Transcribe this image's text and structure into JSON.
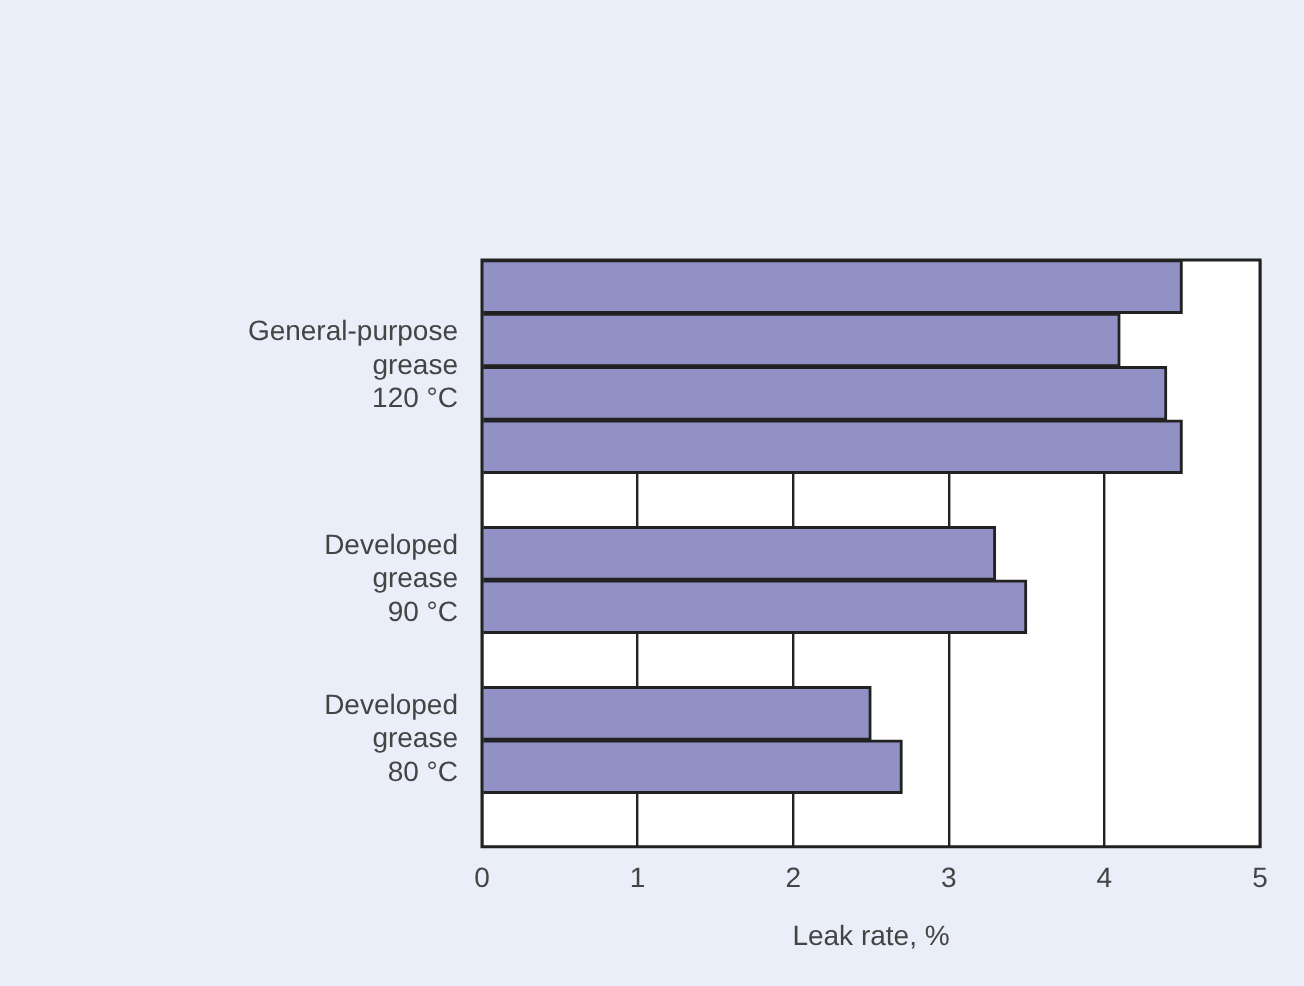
{
  "chart_data": {
    "type": "bar",
    "orientation": "horizontal",
    "xlabel": "Leak rate, %",
    "categories": [
      null,
      "General-purpose\ngrease\n120 °C",
      null,
      null,
      null,
      "Developed\ngrease\n90 °C",
      null,
      null,
      "Developed\ngrease\n80 °C",
      null,
      null
    ],
    "values": [
      4.5,
      4.1,
      4.4,
      4.5,
      null,
      3.3,
      3.5,
      null,
      2.5,
      2.7,
      null
    ],
    "color": "#9191c5",
    "xlim": [
      0,
      5
    ],
    "xticks": [
      0,
      1,
      2,
      3,
      4,
      5
    ],
    "grid": "x",
    "legend": false
  }
}
